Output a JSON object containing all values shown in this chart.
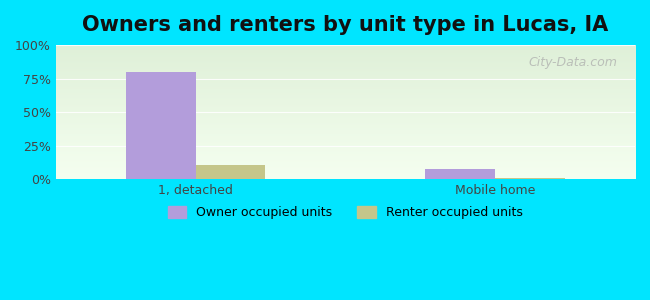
{
  "title": "Owners and renters by unit type in Lucas, IA",
  "categories": [
    "1, detached",
    "Mobile home"
  ],
  "owner_values": [
    80,
    8
  ],
  "renter_values": [
    11,
    1
  ],
  "owner_color": "#b39ddb",
  "renter_color": "#c5c68a",
  "ylim": [
    0,
    100
  ],
  "yticks": [
    0,
    25,
    50,
    75,
    100
  ],
  "ytick_labels": [
    "0%",
    "25%",
    "50%",
    "75%",
    "100%"
  ],
  "bg_color_top": "#e8f5e9",
  "bg_color_bottom": "#f0f8e8",
  "outer_bg": "#00e5ff",
  "title_fontsize": 15,
  "legend_labels": [
    "Owner occupied units",
    "Renter occupied units"
  ],
  "watermark": "City-Data.com",
  "bar_width": 0.35,
  "group_positions": [
    1.0,
    2.5
  ]
}
